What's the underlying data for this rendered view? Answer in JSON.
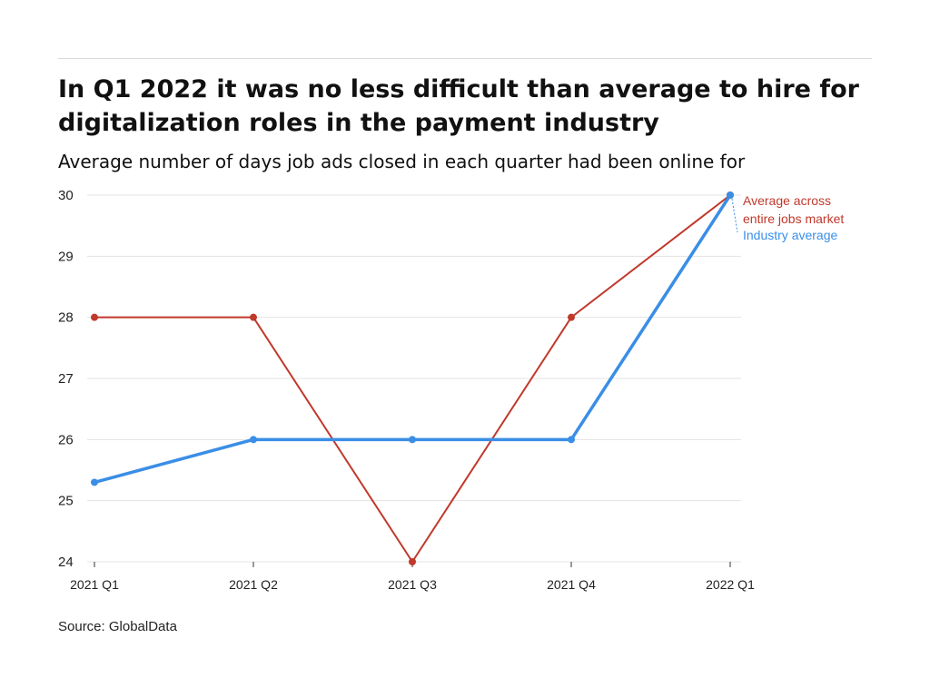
{
  "title": "In Q1 2022 it was no less difficult than average to hire for digitalization roles in the payment industry",
  "subtitle": "Average number of days job ads closed in each quarter had been online for",
  "source": "Source: GlobalData",
  "chart_data": {
    "type": "line",
    "categories": [
      "2021 Q1",
      "2021 Q2",
      "2021 Q3",
      "2021 Q4",
      "2022 Q1"
    ],
    "series": [
      {
        "name": "Average across entire jobs market",
        "label_lines": [
          "Average across",
          "entire jobs market"
        ],
        "values": [
          28,
          28,
          24,
          28,
          30
        ],
        "color": "#c0392b"
      },
      {
        "name": "Industry average",
        "label_lines": [
          "Industry average"
        ],
        "values": [
          25.3,
          26,
          26,
          26,
          30
        ],
        "color": "#3a8ee6"
      }
    ],
    "y_ticks": [
      24,
      25,
      26,
      27,
      28,
      29,
      30
    ],
    "ylim": [
      24,
      30
    ],
    "grid": true,
    "legend": "direct labels at right end of lines"
  }
}
